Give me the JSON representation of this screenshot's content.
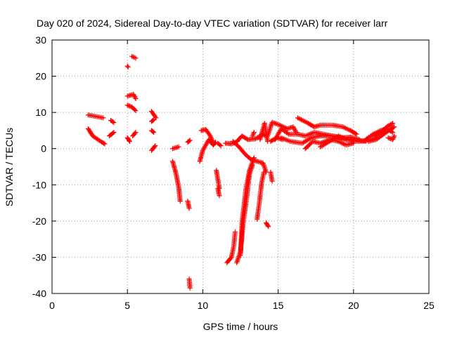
{
  "chart_data": {
    "type": "scatter",
    "title": "Day 020 of 2024, Sidereal Day-to-day VTEC variation (SDTVAR) for receiver larr",
    "xlabel": "GPS time / hours",
    "ylabel": "SDTVAR / TECUs",
    "xlim": [
      0,
      25
    ],
    "ylim": [
      -40,
      30
    ],
    "xticks": [
      0,
      5,
      10,
      15,
      20,
      25
    ],
    "yticks": [
      -40,
      -30,
      -20,
      -10,
      0,
      10,
      20,
      30
    ],
    "grid": true,
    "marker": "+",
    "color": "#ff0000",
    "series": [
      {
        "segments": [
          [
            [
              2.4,
              9.3
            ],
            [
              3.4,
              8.5
            ]
          ],
          [
            [
              2.4,
              5.5
            ],
            [
              2.7,
              3.5
            ],
            [
              3.3,
              1.8
            ],
            [
              3.5,
              1.3
            ]
          ],
          [
            [
              3.9,
              7.8
            ],
            [
              4.1,
              7.2
            ]
          ],
          [
            [
              3.8,
              3.5
            ],
            [
              4.1,
              4.5
            ]
          ],
          [
            [
              5.0,
              22.8
            ],
            [
              5.05,
              22.5
            ]
          ],
          [
            [
              5.3,
              25.5
            ],
            [
              5.55,
              25.0
            ]
          ],
          [
            [
              5.0,
              14.5
            ],
            [
              5.4,
              15.0
            ],
            [
              5.55,
              13.8
            ]
          ],
          [
            [
              5.0,
              12.0
            ],
            [
              5.3,
              11.5
            ],
            [
              5.55,
              10.5
            ]
          ],
          [
            [
              5.0,
              3.0
            ],
            [
              5.15,
              2.0
            ]
          ],
          [
            [
              5.35,
              3.5
            ],
            [
              5.55,
              4.5
            ]
          ],
          [
            [
              6.6,
              10.3
            ],
            [
              6.9,
              8.5
            ]
          ],
          [
            [
              6.6,
              7.5
            ],
            [
              6.75,
              8.0
            ]
          ],
          [
            [
              6.6,
              5.0
            ],
            [
              6.75,
              4.5
            ]
          ],
          [
            [
              6.6,
              -0.5
            ],
            [
              6.85,
              0.8
            ]
          ],
          [
            [
              8.0,
              0.0
            ],
            [
              8.4,
              0.5
            ]
          ],
          [
            [
              8.0,
              -3.5
            ],
            [
              8.2,
              -6.5
            ],
            [
              8.4,
              -10.5
            ],
            [
              8.5,
              -14.5
            ]
          ],
          [
            [
              9.0,
              -14.5
            ],
            [
              9.1,
              -16.5
            ]
          ],
          [
            [
              9.0,
              1.8
            ],
            [
              9.15,
              2.3
            ]
          ],
          [
            [
              9.1,
              -36.0
            ],
            [
              9.15,
              -38.5
            ]
          ],
          [
            [
              9.8,
              -3.5
            ],
            [
              10.0,
              -0.5
            ],
            [
              10.4,
              2.5
            ],
            [
              10.7,
              1.0
            ],
            [
              10.85,
              1.8
            ]
          ],
          [
            [
              9.9,
              5.0
            ],
            [
              10.2,
              5.3
            ],
            [
              10.5,
              3.5
            ],
            [
              10.7,
              1.5
            ]
          ],
          [
            [
              11.0,
              1.5
            ],
            [
              11.2,
              0.8
            ]
          ],
          [
            [
              10.9,
              -6.0
            ],
            [
              11.0,
              -8.5
            ],
            [
              11.1,
              -11.0
            ]
          ],
          [
            [
              11.0,
              -11.0
            ],
            [
              11.1,
              -13.0
            ]
          ],
          [
            [
              11.5,
              1.5
            ],
            [
              11.9,
              1.3
            ],
            [
              12.3,
              2.0
            ]
          ],
          [
            [
              11.6,
              -31.5
            ],
            [
              11.9,
              -30.0
            ],
            [
              12.05,
              -27.0
            ],
            [
              12.15,
              -23.0
            ]
          ],
          [
            [
              12.25,
              -31.5
            ],
            [
              12.5,
              -28.5
            ],
            [
              12.7,
              -20.0
            ],
            [
              12.9,
              -14.0
            ],
            [
              13.1,
              -7.0
            ],
            [
              13.3,
              -4.5
            ]
          ],
          [
            [
              12.5,
              -29.5
            ],
            [
              12.6,
              -20.5
            ],
            [
              12.85,
              -11.5
            ],
            [
              13.1,
              -6.0
            ],
            [
              13.4,
              -2.5
            ]
          ],
          [
            [
              12.3,
              2.2
            ],
            [
              12.6,
              3.5
            ],
            [
              13.0,
              2.5
            ],
            [
              13.5,
              2.7
            ],
            [
              14.0,
              4.0
            ],
            [
              14.2,
              3.5
            ]
          ],
          [
            [
              12.0,
              2.0
            ],
            [
              12.4,
              0.5
            ],
            [
              12.8,
              -1.5
            ],
            [
              13.2,
              -3.0
            ],
            [
              13.6,
              -3.5
            ],
            [
              14.0,
              -4.0
            ],
            [
              14.2,
              -6.5
            ]
          ],
          [
            [
              13.6,
              -19.5
            ],
            [
              13.75,
              -15.0
            ],
            [
              13.9,
              -9.5
            ],
            [
              14.05,
              -6.5
            ]
          ],
          [
            [
              13.3,
              3.5
            ],
            [
              13.4,
              4.5
            ]
          ],
          [
            [
              13.8,
              2.5
            ],
            [
              14.1,
              7.0
            ],
            [
              14.3,
              2.0
            ]
          ],
          [
            [
              14.2,
              -20.5
            ],
            [
              14.35,
              -21.5
            ]
          ],
          [
            [
              14.5,
              -6.5
            ],
            [
              14.6,
              -9.0
            ]
          ],
          [
            [
              14.3,
              3.5
            ],
            [
              14.6,
              7.3
            ],
            [
              15.1,
              6.5
            ],
            [
              15.6,
              5.5
            ],
            [
              16.0,
              6.0
            ],
            [
              16.2,
              4.5
            ]
          ],
          [
            [
              14.5,
              2.0
            ],
            [
              14.9,
              3.0
            ],
            [
              15.3,
              2.5
            ]
          ],
          [
            [
              14.8,
              2.5
            ],
            [
              15.2,
              5.5
            ],
            [
              15.7,
              4.0
            ],
            [
              16.3,
              4.0
            ],
            [
              16.8,
              3.5
            ],
            [
              17.4,
              4.5
            ],
            [
              18.0,
              4.0
            ],
            [
              18.6,
              3.5
            ],
            [
              19.2,
              3.0
            ],
            [
              19.8,
              3.2
            ],
            [
              20.4,
              2.5
            ]
          ],
          [
            [
              15.2,
              3.0
            ],
            [
              15.8,
              2.0
            ],
            [
              16.6,
              1.5
            ],
            [
              17.2,
              3.0
            ],
            [
              17.8,
              3.5
            ],
            [
              18.6,
              3.5
            ],
            [
              19.5,
              2.5
            ],
            [
              20.3,
              2.0
            ],
            [
              21.0,
              2.3
            ],
            [
              21.5,
              3.0
            ]
          ],
          [
            [
              16.3,
              8.5
            ],
            [
              17.0,
              7.0
            ],
            [
              17.4,
              6.0
            ],
            [
              17.8,
              6.5
            ],
            [
              18.6,
              6.5
            ],
            [
              19.3,
              6.0
            ],
            [
              19.8,
              5.0
            ],
            [
              20.2,
              4.0
            ]
          ],
          [
            [
              17.8,
              0.5
            ],
            [
              18.4,
              2.0
            ],
            [
              19.0,
              3.5
            ],
            [
              19.6,
              2.5
            ],
            [
              20.2,
              2.3
            ],
            [
              20.8,
              2.0
            ]
          ],
          [
            [
              16.8,
              0.0
            ],
            [
              17.3,
              2.0
            ],
            [
              17.8,
              1.5
            ],
            [
              18.4,
              2.5
            ],
            [
              19.0,
              2.0
            ],
            [
              19.5,
              1.0
            ],
            [
              20.0,
              1.5
            ]
          ],
          [
            [
              21.4,
              3.5
            ],
            [
              21.8,
              4.5
            ],
            [
              22.2,
              6.0
            ],
            [
              22.6,
              7.0
            ]
          ],
          [
            [
              20.8,
              2.5
            ],
            [
              21.3,
              4.0
            ],
            [
              21.8,
              5.0
            ],
            [
              22.2,
              5.5
            ],
            [
              22.6,
              4.5
            ]
          ],
          [
            [
              21.0,
              2.0
            ],
            [
              21.5,
              2.5
            ],
            [
              22.0,
              4.0
            ],
            [
              22.5,
              5.5
            ],
            [
              22.7,
              6.0
            ]
          ],
          [
            [
              22.3,
              3.0
            ],
            [
              22.6,
              2.5
            ],
            [
              22.7,
              3.5
            ]
          ]
        ]
      }
    ]
  }
}
